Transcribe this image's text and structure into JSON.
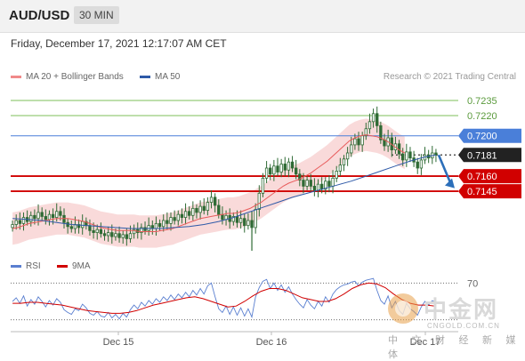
{
  "header": {
    "pair": "AUD/USD",
    "timeframe": "30 MIN"
  },
  "timestamp": "Friday, December 17, 2021 12:17:07 AM CET",
  "legend": {
    "ma20": "MA 20 + Bollinger Bands",
    "ma50": "MA 50",
    "credit": "Research © 2021 Trading Central"
  },
  "rsi_legend": {
    "rsi": "RSI",
    "ma": "9MA"
  },
  "colors": {
    "candle": "#2f6b35",
    "ma20": "#e85b5b",
    "band": "#f7cdcd",
    "ma50": "#2f5aa8",
    "green_level": "#7cbf5a",
    "blue_level": "#4a7fd9",
    "red_level": "#d10000",
    "current": "#222222",
    "arrow": "#2c6fba",
    "rsi": "#5a7fd0",
    "rsi_ma": "#d10000"
  },
  "watermark": {
    "brand": "中金网",
    "site": "CNGOLD.COM.CN",
    "tagline": "中 文 财 经 新 媒 体"
  },
  "chart_data": {
    "type": "candlestick",
    "price_axis": [
      0.7086,
      0.725
    ],
    "x_labels": [
      "Dec 15",
      "Dec 16",
      "Dec 17"
    ],
    "levels": [
      {
        "value": 0.7235,
        "label": "0.7235",
        "kind": "resistance-green"
      },
      {
        "value": 0.722,
        "label": "0.7220",
        "kind": "resistance-green"
      },
      {
        "value": 0.72,
        "label": "0.7200",
        "kind": "resistance-blue"
      },
      {
        "value": 0.7181,
        "label": "0.7181",
        "kind": "current"
      },
      {
        "value": 0.716,
        "label": "0.7160",
        "kind": "support-red"
      },
      {
        "value": 0.7145,
        "label": "0.7145",
        "kind": "support-red"
      }
    ],
    "closes": [
      0.7112,
      0.7116,
      0.7113,
      0.7119,
      0.7115,
      0.7121,
      0.7118,
      0.7124,
      0.712,
      0.7117,
      0.7122,
      0.7119,
      0.7125,
      0.7121,
      0.7114,
      0.711,
      0.7108,
      0.7112,
      0.7109,
      0.7115,
      0.7111,
      0.7106,
      0.7104,
      0.7107,
      0.7103,
      0.7101,
      0.7104,
      0.71,
      0.7103,
      0.7099,
      0.7102,
      0.7098,
      0.7103,
      0.7107,
      0.7104,
      0.7109,
      0.7106,
      0.7111,
      0.7108,
      0.7113,
      0.711,
      0.7116,
      0.7113,
      0.7119,
      0.7116,
      0.7122,
      0.7119,
      0.7125,
      0.7121,
      0.7128,
      0.7124,
      0.713,
      0.7126,
      0.7134,
      0.7139,
      0.7131,
      0.7122,
      0.7117,
      0.7121,
      0.7115,
      0.712,
      0.7114,
      0.7118,
      0.7111,
      0.7116,
      0.7109,
      0.7127,
      0.7143,
      0.7158,
      0.7168,
      0.7162,
      0.717,
      0.7164,
      0.7172,
      0.7166,
      0.7174,
      0.7168,
      0.7162,
      0.7156,
      0.715,
      0.7156,
      0.715,
      0.7146,
      0.7152,
      0.7147,
      0.7155,
      0.715,
      0.7158,
      0.7165,
      0.7171,
      0.7177,
      0.7183,
      0.7191,
      0.7197,
      0.7191,
      0.72,
      0.7207,
      0.7214,
      0.7222,
      0.721,
      0.7196,
      0.719,
      0.7198,
      0.7186,
      0.7192,
      0.7182,
      0.7176,
      0.7184,
      0.7178,
      0.7174,
      0.7168,
      0.7176,
      0.7181,
      0.7178,
      0.7183,
      0.7181
    ],
    "ma20": [
      0.7108,
      0.7109,
      0.7111,
      0.7113,
      0.7114,
      0.7115,
      0.7116,
      0.7117,
      0.7118,
      0.7118,
      0.7118,
      0.7117,
      0.7116,
      0.7115,
      0.7113,
      0.7111,
      0.7109,
      0.7108,
      0.7107,
      0.7106,
      0.7106,
      0.7106,
      0.7106,
      0.7105,
      0.7105,
      0.7105,
      0.7105,
      0.7106,
      0.7107,
      0.7108,
      0.711,
      0.7112,
      0.7114,
      0.7116,
      0.7118,
      0.7119,
      0.712,
      0.7121,
      0.7122,
      0.7123,
      0.7123,
      0.7124,
      0.7126,
      0.7128,
      0.7131,
      0.7134,
      0.7138,
      0.7142,
      0.7146,
      0.715,
      0.7153,
      0.7155,
      0.7157,
      0.716,
      0.7163,
      0.7167,
      0.7171,
      0.7175,
      0.718,
      0.7185,
      0.719,
      0.7195,
      0.7198,
      0.72,
      0.7201,
      0.72,
      0.7199,
      0.7197,
      0.7194,
      0.719,
      0.7186,
      0.7183
    ],
    "ma20_x": [
      0,
      1.5,
      3,
      4.5,
      6,
      7.5,
      9,
      10.5,
      12,
      13.5,
      15,
      16.5,
      18,
      19.5,
      21,
      22.5,
      24,
      25.5,
      27,
      28.5,
      30,
      31.5,
      33,
      34.5,
      36,
      37.5,
      39,
      40.5,
      42,
      43.5,
      45,
      46.5,
      48,
      49.5,
      51,
      52.5,
      54,
      55.5,
      57,
      58.5,
      60,
      61.5,
      63,
      64.5,
      66,
      67.5,
      69,
      70.5,
      72,
      73.5,
      75,
      76.5,
      78,
      79.5,
      81,
      82.5,
      84,
      85.5,
      87,
      88.5,
      90,
      91.5,
      93,
      94.5,
      96,
      97.5,
      99,
      100.5,
      102,
      103.5,
      105,
      106.5
    ],
    "ma50": [
      0.7118,
      0.7117,
      0.7116,
      0.7114,
      0.7112,
      0.7111,
      0.711,
      0.7109,
      0.7108,
      0.7108,
      0.7108,
      0.7109,
      0.711,
      0.7112,
      0.7115,
      0.7119,
      0.7124,
      0.7129,
      0.7134,
      0.7139,
      0.7143,
      0.7147,
      0.7151,
      0.7155,
      0.716,
      0.7165,
      0.717,
      0.7175,
      0.7179,
      0.7181
    ],
    "ma50_x": [
      0,
      4,
      8,
      12,
      16,
      20,
      24,
      28,
      32,
      36,
      40,
      44,
      48,
      52,
      56,
      60,
      64,
      68,
      72,
      76,
      80,
      84,
      88,
      92,
      96,
      100,
      104,
      108,
      112,
      115
    ],
    "rsi_axis": [
      20,
      80
    ],
    "rsi_levels": [
      70,
      30
    ],
    "rsi_label": "70",
    "rsi": [
      50,
      54,
      48,
      56,
      45,
      52,
      47,
      55,
      50,
      44,
      51,
      46,
      53,
      49,
      41,
      38,
      36,
      42,
      40,
      47,
      43,
      37,
      35,
      39,
      34,
      33,
      38,
      32,
      36,
      31,
      37,
      33,
      41,
      46,
      42,
      49,
      45,
      51,
      47,
      53,
      49,
      55,
      51,
      57,
      52,
      58,
      54,
      60,
      55,
      62,
      57,
      64,
      58,
      67,
      70,
      55,
      42,
      38,
      45,
      36,
      44,
      35,
      43,
      34,
      42,
      33,
      55,
      65,
      72,
      74,
      64,
      70,
      62,
      68,
      60,
      66,
      58,
      52,
      47,
      43,
      52,
      46,
      42,
      50,
      45,
      55,
      49,
      58,
      63,
      66,
      68,
      69,
      71,
      72,
      67,
      71,
      73,
      74,
      75,
      62,
      51,
      47,
      56,
      43,
      50,
      40,
      36,
      48,
      42,
      39,
      35,
      44,
      50,
      46,
      51,
      49
    ],
    "rsi_ma": [
      48,
      48,
      49,
      49,
      48,
      47,
      46,
      44,
      42,
      40,
      39,
      38,
      37,
      37,
      38,
      40,
      43,
      46,
      48,
      50,
      52,
      54,
      55,
      53,
      50,
      47,
      44,
      45,
      50,
      56,
      61,
      64,
      64,
      62,
      58,
      54,
      52,
      50,
      50,
      53,
      58,
      64,
      68,
      70,
      69,
      65,
      58,
      52,
      48,
      46,
      46,
      45
    ],
    "rsi_ma_x": [
      0,
      2.25,
      4.5,
      6.75,
      9,
      11.25,
      13.5,
      15.75,
      18,
      20.25,
      22.5,
      24.75,
      27,
      29.25,
      31.5,
      33.75,
      36,
      38.25,
      40.5,
      42.75,
      45,
      47.25,
      49.5,
      51.75,
      54,
      56.25,
      58.5,
      60.75,
      63,
      65.25,
      67.5,
      69.75,
      72,
      74.25,
      76.5,
      78.75,
      81,
      83.25,
      85.5,
      87.75,
      90,
      92.25,
      94.5,
      96.75,
      99,
      101.25,
      103.5,
      105.75,
      108,
      110.25,
      112.5,
      114.75
    ]
  }
}
